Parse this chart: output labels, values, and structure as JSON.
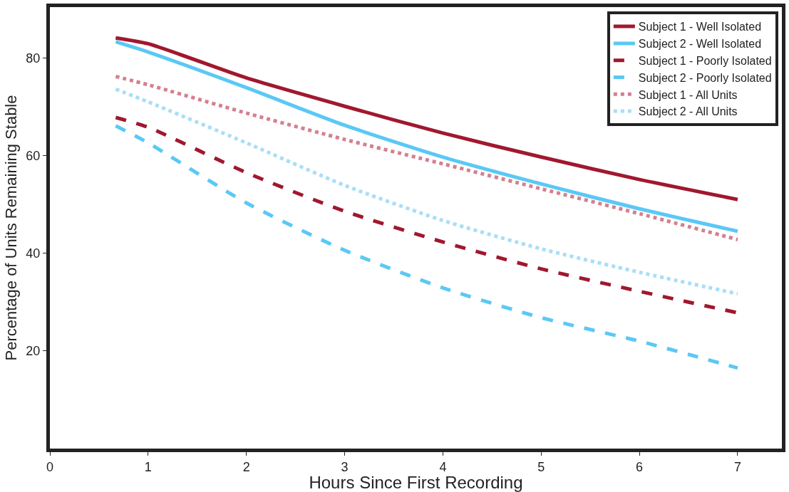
{
  "chart_data": {
    "type": "line",
    "xlabel": "Hours Since First Recording",
    "ylabel": "Percentage of Units Remaining Stable",
    "x": [
      0.67,
      1,
      2,
      3,
      4,
      5,
      6,
      7
    ],
    "xlim": [
      0,
      7.45
    ],
    "xticks": [
      0,
      1,
      2,
      3,
      4,
      5,
      6,
      7
    ],
    "ylim": [
      0,
      90.4
    ],
    "yticks": [
      20,
      40,
      60,
      80
    ],
    "legend": "top right",
    "marker": "none",
    "series": [
      {
        "name": "Subject 1 - Well Isolated",
        "color": "#a0182f",
        "line_style": "solid",
        "values": [
          84.1,
          82.9,
          75.9,
          70.1,
          64.6,
          59.7,
          55.1,
          51
        ]
      },
      {
        "name": "Subject 2 - Well Isolated",
        "color": "#5bc8f5",
        "line_style": "solid",
        "values": [
          83.3,
          81.2,
          73.9,
          66.2,
          59.7,
          54.2,
          49.1,
          44.5
        ]
      },
      {
        "name": "Subject 1 - Poorly Isolated",
        "color": "#a0182f",
        "line_style": "dashed",
        "values": [
          67.8,
          65.8,
          56.5,
          48.6,
          42.3,
          36.8,
          32.2,
          27.8
        ]
      },
      {
        "name": "Subject 2 - Poorly Isolated",
        "color": "#5bc8f5",
        "line_style": "dashed",
        "values": [
          66.1,
          62.6,
          50.3,
          40.6,
          32.9,
          26.8,
          22,
          16.5
        ]
      },
      {
        "name": "Subject 1 - All Units",
        "color": "#d4808f",
        "line_style": "dotted",
        "values": [
          76.2,
          74.5,
          68.7,
          63.3,
          58.3,
          53.2,
          48.1,
          42.8
        ]
      },
      {
        "name": "Subject 2 - All Units",
        "color": "#a8def7",
        "line_style": "dotted",
        "values": [
          73.6,
          71,
          62.6,
          53.9,
          46.7,
          40.9,
          36.1,
          31.7
        ]
      }
    ]
  }
}
